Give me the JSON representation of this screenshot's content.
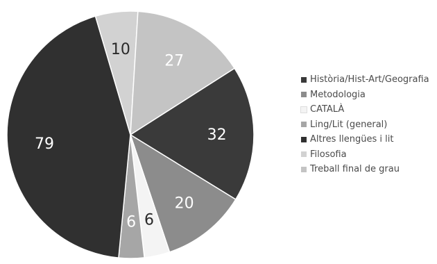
{
  "chart_data": {
    "type": "pie",
    "title": "",
    "legend_position": "right",
    "series": [
      {
        "name": "Història/Hist-Art/Geografia",
        "value": 32,
        "color": "#3a3a3a"
      },
      {
        "name": "Metodologia",
        "value": 20,
        "color": "#8c8c8c"
      },
      {
        "name": "CATALÀ",
        "value": 6,
        "color": "#f4f4f4"
      },
      {
        "name": "Ling/Lit (general)",
        "value": 6,
        "color": "#a6a6a6"
      },
      {
        "name": "Altres llengües i lit",
        "value": 79,
        "color": "#303030"
      },
      {
        "name": "Filosofia",
        "value": 10,
        "color": "#d2d2d2"
      },
      {
        "name": "Treball final de grau",
        "value": 27,
        "color": "#c4c4c4"
      }
    ],
    "slice_order": [
      "Filosofia",
      "Treball final de grau",
      "Història/Hist-Art/Geografia",
      "Metodologia",
      "CATALÀ",
      "Ling/Lit (general)",
      "Altres llengües i lit"
    ],
    "label_text_colors": {
      "light": "#ffffff",
      "dark": "#2a2a2a"
    }
  }
}
